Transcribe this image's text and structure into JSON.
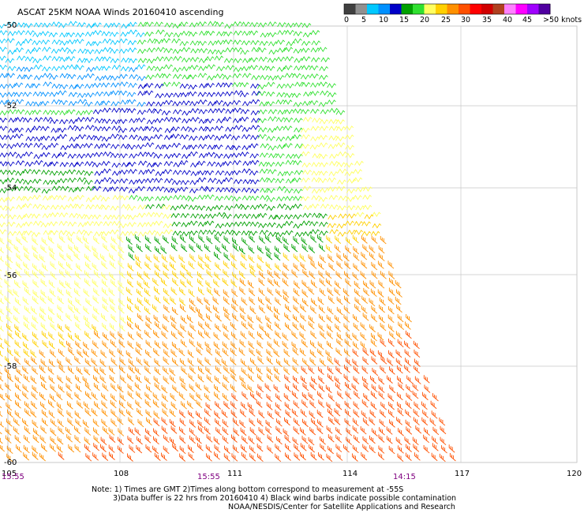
{
  "title": "ASCAT 25KM NOAA Winds 20160410 ascending",
  "legend": {
    "labels": [
      "0",
      "5",
      "10",
      "15",
      "20",
      "25",
      "30",
      "35",
      "40",
      "45",
      ">50 knots"
    ],
    "colors": [
      "#404040",
      "#909090",
      "#00c8ff",
      "#0090ff",
      "#0000c8",
      "#00a000",
      "#30e030",
      "#ffff60",
      "#ffd000",
      "#ff9000",
      "#ff5000",
      "#ff0000",
      "#d00000",
      "#b04020",
      "#ff80ff",
      "#ff00ff",
      "#a000ff",
      "#5000a0"
    ]
  },
  "axes": {
    "lon_labels": [
      "105",
      "108",
      "111",
      "114",
      "117",
      "120"
    ],
    "lat_labels": [
      "-50",
      "-52",
      "-54",
      "-56",
      "-58",
      "-60"
    ],
    "time_labels": [
      "15:55",
      "15:55",
      "14:15"
    ]
  },
  "notes": {
    "line1": "Note: 1) Times are GMT 2)Times along bottom correspond to measurement at -55S",
    "line2": "3)Data buffer is 22 hrs from 20160410 4) Black wind barbs indicate possible contamination",
    "line3": "NOAA/NESDIS/Center for Satellite Applications and Research"
  }
}
